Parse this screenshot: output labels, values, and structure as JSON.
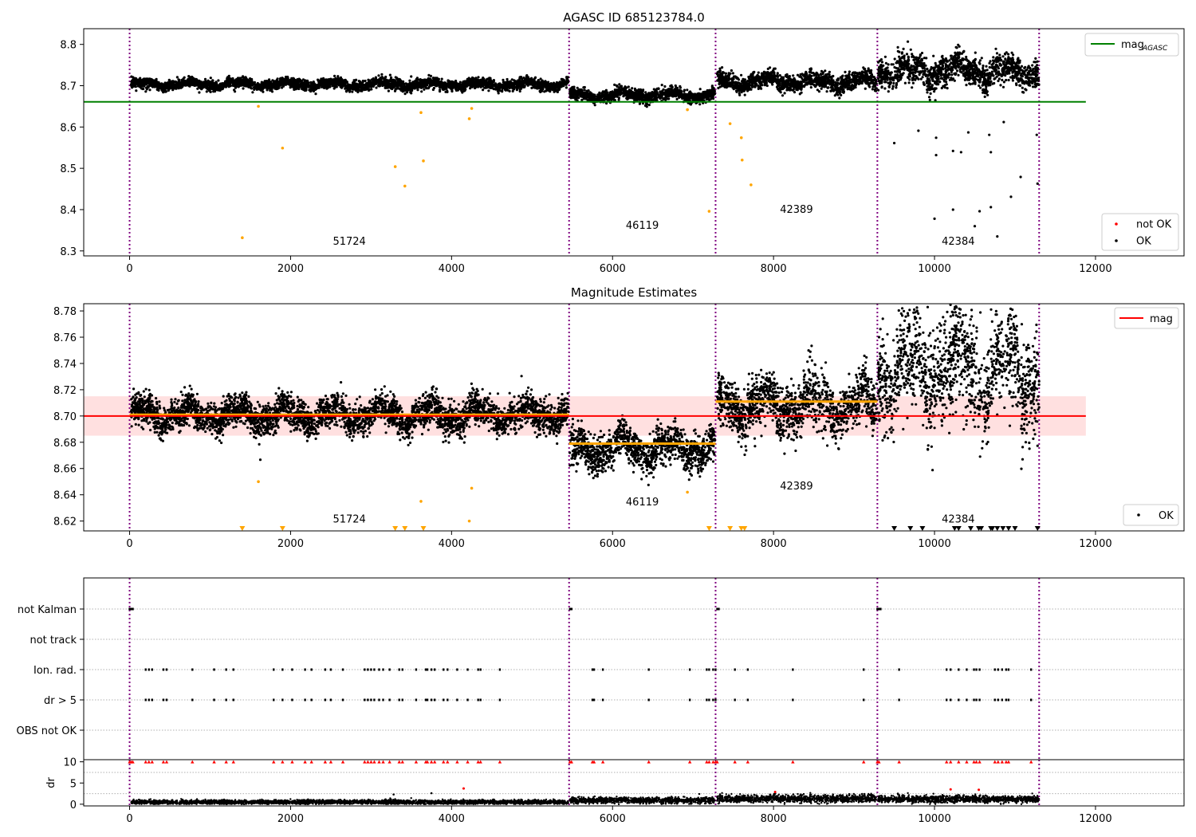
{
  "chart_data": [
    {
      "type": "scatter",
      "title": "AGASC ID 685123784.0",
      "xlim": [
        -570,
        13100
      ],
      "ylim": [
        8.288,
        8.838
      ],
      "xticks": [
        0,
        2000,
        4000,
        6000,
        8000,
        10000,
        12000
      ],
      "xtick_labels": [
        "0",
        "2000",
        "4000",
        "6000",
        "8000",
        "10000",
        "12000"
      ],
      "yticks": [
        8.3,
        8.4,
        8.5,
        8.6,
        8.7,
        8.8
      ],
      "ytick_labels": [
        "8.3",
        "8.4",
        "8.5",
        "8.6",
        "8.7",
        "8.8"
      ],
      "legend_upper": {
        "position": "top-right",
        "entries": [
          {
            "label": "mag",
            "sub": "AGASC",
            "color": "#008000"
          }
        ]
      },
      "legend_lower": {
        "position": "bottom-right",
        "entries": [
          {
            "label": "not OK",
            "color": "#ff0000"
          },
          {
            "label": "OK",
            "color": "#000000"
          }
        ]
      },
      "reference_line": {
        "value": 8.661,
        "x_range": [
          -570,
          11880
        ],
        "color": "#008000"
      },
      "observation_boundaries": [
        0,
        5460,
        7280,
        9290,
        11300
      ],
      "observation_labels": [
        {
          "text": "51724",
          "x": 2730,
          "y": 8.315
        },
        {
          "text": "46119",
          "x": 6370,
          "y": 8.354
        },
        {
          "text": "42389",
          "x": 8285,
          "y": 8.392
        },
        {
          "text": "42384",
          "x": 10295,
          "y": 8.315
        }
      ],
      "segments": [
        {
          "x_range": [
            20,
            5450
          ],
          "baseline": 8.703,
          "spread": 0.006
        },
        {
          "x_range": [
            5470,
            7270
          ],
          "baseline": 8.677,
          "spread": 0.007
        },
        {
          "x_range": [
            7300,
            9280
          ],
          "baseline": 8.71,
          "spread": 0.01
        },
        {
          "x_range": [
            9300,
            11300
          ],
          "baseline": 8.735,
          "spread": 0.017
        }
      ],
      "flagged_points": [
        {
          "x": 1400,
          "y": 8.332
        },
        {
          "x": 1600,
          "y": 8.65
        },
        {
          "x": 1900,
          "y": 8.549
        },
        {
          "x": 3300,
          "y": 8.504
        },
        {
          "x": 3420,
          "y": 8.457
        },
        {
          "x": 3650,
          "y": 8.518
        },
        {
          "x": 3620,
          "y": 8.635
        },
        {
          "x": 4220,
          "y": 8.62
        },
        {
          "x": 4250,
          "y": 8.645
        },
        {
          "x": 7200,
          "y": 8.396
        },
        {
          "x": 7460,
          "y": 8.608
        },
        {
          "x": 7600,
          "y": 8.574
        },
        {
          "x": 7610,
          "y": 8.52
        },
        {
          "x": 7720,
          "y": 8.46
        },
        {
          "x": 6930,
          "y": 8.642
        }
      ],
      "outlier_points_ok": [
        {
          "x": 9500,
          "y": 8.561
        },
        {
          "x": 9800,
          "y": 8.591
        },
        {
          "x": 10000,
          "y": 8.378
        },
        {
          "x": 10020,
          "y": 8.532
        },
        {
          "x": 10020,
          "y": 8.574
        },
        {
          "x": 10230,
          "y": 8.4
        },
        {
          "x": 10230,
          "y": 8.542
        },
        {
          "x": 10330,
          "y": 8.539
        },
        {
          "x": 10420,
          "y": 8.587
        },
        {
          "x": 10500,
          "y": 8.36
        },
        {
          "x": 10560,
          "y": 8.396
        },
        {
          "x": 10700,
          "y": 8.406
        },
        {
          "x": 10700,
          "y": 8.539
        },
        {
          "x": 10780,
          "y": 8.335
        },
        {
          "x": 10950,
          "y": 8.431
        },
        {
          "x": 11070,
          "y": 8.479
        },
        {
          "x": 11280,
          "y": 8.463
        },
        {
          "x": 11270,
          "y": 8.581
        },
        {
          "x": 10680,
          "y": 8.581
        },
        {
          "x": 10860,
          "y": 8.612
        }
      ]
    },
    {
      "type": "scatter",
      "title": "Magnitude Estimates",
      "xlim": [
        -570,
        13100
      ],
      "ylim": [
        8.6125,
        8.7855
      ],
      "xticks": [
        0,
        2000,
        4000,
        6000,
        8000,
        10000,
        12000
      ],
      "xtick_labels": [
        "0",
        "2000",
        "4000",
        "6000",
        "8000",
        "10000",
        "12000"
      ],
      "yticks": [
        8.62,
        8.64,
        8.66,
        8.68,
        8.7,
        8.72,
        8.74,
        8.76,
        8.78
      ],
      "ytick_labels": [
        "8.62",
        "8.64",
        "8.66",
        "8.68",
        "8.70",
        "8.72",
        "8.74",
        "8.76",
        "8.78"
      ],
      "legend_upper": {
        "position": "top-right",
        "entries": [
          {
            "label": "mag",
            "color": "#ff0000"
          }
        ]
      },
      "legend_lower": {
        "position": "bottom-right",
        "entries": [
          {
            "label": "OK",
            "color": "#000000"
          }
        ]
      },
      "reference_line": {
        "value": 8.7,
        "x_range": [
          -570,
          11880
        ],
        "color": "#ff0000"
      },
      "reference_band": [
        8.685,
        8.715
      ],
      "segment_means": [
        {
          "x_range": [
            0,
            5460
          ],
          "value": 8.701
        },
        {
          "x_range": [
            5460,
            7280
          ],
          "value": 8.679
        },
        {
          "x_range": [
            7280,
            9290
          ],
          "value": 8.711
        }
      ],
      "observation_boundaries": [
        0,
        5460,
        7280,
        9290,
        11300
      ],
      "observation_labels": [
        {
          "text": "51724",
          "x": 2730,
          "y": 8.619
        },
        {
          "text": "46119",
          "x": 6370,
          "y": 8.632
        },
        {
          "text": "42389",
          "x": 8285,
          "y": 8.644
        },
        {
          "text": "42384",
          "x": 10295,
          "y": 8.619
        }
      ],
      "segments": [
        {
          "x_range": [
            20,
            5450
          ],
          "baseline": 8.701,
          "spread": 0.006
        },
        {
          "x_range": [
            5470,
            7270
          ],
          "baseline": 8.675,
          "spread": 0.007
        },
        {
          "x_range": [
            7300,
            9280
          ],
          "baseline": 8.708,
          "spread": 0.01
        },
        {
          "x_range": [
            9300,
            11300
          ],
          "baseline": 8.735,
          "spread": 0.02
        }
      ],
      "clipped_marker_x": [
        1400,
        1900,
        3300,
        3420,
        3650,
        7200,
        7460,
        7600,
        7640,
        9500,
        9700,
        9850,
        10250,
        10300,
        10450,
        10550,
        10580,
        10700,
        10720,
        10780,
        10850,
        10920,
        11000,
        11280
      ]
    },
    {
      "type": "scatter",
      "xlim": [
        -570,
        13100
      ],
      "categories": [
        "not Kalman",
        "not track",
        "Ion. rad.",
        "dr > 5",
        "OBS not OK"
      ],
      "flag_events": {
        "not Kalman": [
          0,
          20,
          40,
          5470,
          5490,
          7300,
          7320,
          9290,
          9310,
          9330
        ],
        "not track": [],
        "Ion. rad.": [
          200,
          240,
          280,
          420,
          460,
          780,
          1050,
          1200,
          1290,
          1790,
          1900,
          2020,
          2180,
          2260,
          2430,
          2500,
          2650,
          2920,
          2960,
          3000,
          3040,
          3100,
          3150,
          3230,
          3350,
          3390,
          3560,
          3680,
          3700,
          3750,
          3790,
          3900,
          3950,
          4070,
          4200,
          4330,
          4360,
          4600,
          5750,
          5770,
          5880,
          6450,
          6960,
          7170,
          7200,
          7250,
          7280,
          7520,
          7680,
          8240,
          9120,
          9560,
          10150,
          10200,
          10300,
          10400,
          10490,
          10520,
          10560,
          10750,
          10790,
          10840,
          10890,
          10920,
          11200
        ],
        "dr > 5": [
          200,
          240,
          280,
          420,
          460,
          780,
          1050,
          1200,
          1290,
          1790,
          1900,
          2020,
          2180,
          2260,
          2430,
          2500,
          2650,
          2920,
          2960,
          3000,
          3040,
          3100,
          3150,
          3230,
          3350,
          3390,
          3560,
          3680,
          3700,
          3750,
          3790,
          3900,
          3950,
          4070,
          4200,
          4330,
          4360,
          4600,
          5750,
          5770,
          5880,
          6450,
          6960,
          7170,
          7200,
          7250,
          7280,
          7520,
          7680,
          8240,
          9120,
          9560,
          10150,
          10200,
          10300,
          10400,
          10490,
          10520,
          10560,
          10750,
          10790,
          10840,
          10890,
          10920,
          11200
        ],
        "OBS not OK": []
      },
      "observation_boundaries": [
        0,
        5460,
        7280,
        9290,
        11300
      ]
    },
    {
      "type": "scatter",
      "ylabel": "dr",
      "xlim": [
        -570,
        13100
      ],
      "ylim": [
        -0.4,
        10.5
      ],
      "xticks": [
        0,
        2000,
        4000,
        6000,
        8000,
        10000,
        12000
      ],
      "xtick_labels": [
        "0",
        "2000",
        "4000",
        "6000",
        "8000",
        "10000",
        "12000"
      ],
      "yticks": [
        0,
        5,
        10
      ],
      "ytick_labels": [
        "0",
        "5",
        "10"
      ],
      "clip_value": 10,
      "observation_boundaries": [
        0,
        5460,
        7280,
        9290,
        11300
      ],
      "segments": [
        {
          "x_range": [
            20,
            5450
          ],
          "baseline": 0.5,
          "spread": 0.25
        },
        {
          "x_range": [
            5470,
            7270
          ],
          "baseline": 0.9,
          "spread": 0.35
        },
        {
          "x_range": [
            7300,
            9280
          ],
          "baseline": 1.3,
          "spread": 0.45
        },
        {
          "x_range": [
            9300,
            11300
          ],
          "baseline": 1.2,
          "spread": 0.4
        }
      ],
      "high_points": [
        {
          "x": 3280,
          "y": 2.3
        },
        {
          "x": 3750,
          "y": 2.6
        },
        {
          "x": 4150,
          "y": 3.7
        },
        {
          "x": 8020,
          "y": 2.9
        },
        {
          "x": 10200,
          "y": 3.5
        },
        {
          "x": 10550,
          "y": 3.4
        },
        {
          "x": 9100,
          "y": 2.4
        }
      ]
    }
  ]
}
